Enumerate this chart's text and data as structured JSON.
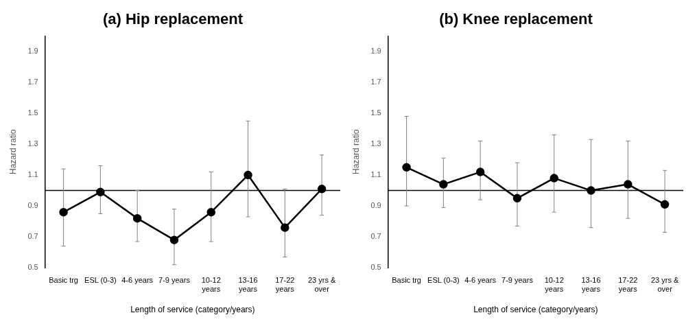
{
  "chart_data": [
    {
      "type": "line",
      "title": "(a) Hip replacement",
      "xlabel": "Length of service (category/years)",
      "ylabel": "Hazard ratio",
      "categories": [
        "Basic trg",
        "ESL (0-3)",
        "4-6 years",
        "7-9 years",
        "10-12 years",
        "13-16 years",
        "17-22 years",
        "23 yrs & over"
      ],
      "series": [
        {
          "color": "#000000",
          "values": [
            0.86,
            0.99,
            0.82,
            0.68,
            0.86,
            1.1,
            0.76,
            1.01
          ],
          "errors": [
            [
              0.64,
              1.14
            ],
            [
              0.85,
              1.16
            ],
            [
              0.67,
              1.0
            ],
            [
              0.52,
              0.88
            ],
            [
              0.67,
              1.12
            ],
            [
              0.83,
              1.45
            ],
            [
              0.57,
              1.01
            ],
            [
              0.84,
              1.23
            ]
          ]
        }
      ],
      "ylim": [
        0.5,
        2.0
      ],
      "yticks": [
        0.5,
        0.7,
        0.9,
        1.1,
        1.3,
        1.5,
        1.7,
        1.9
      ],
      "ref_lines": [
        {
          "axis": "y",
          "value": 1.0,
          "color": "#000000"
        }
      ],
      "grid": false,
      "legend": false,
      "marker": "circle",
      "line_style": "solid"
    },
    {
      "type": "line",
      "title": "(b) Knee replacement",
      "xlabel": "Length of service (category/years)",
      "ylabel": "Hazard ratio",
      "categories": [
        "Basic trg",
        "ESL (0-3)",
        "4-6 years",
        "7-9 years",
        "10-12 years",
        "13-16 years",
        "17-22 years",
        "23 yrs & over"
      ],
      "series": [
        {
          "color": "#000000",
          "values": [
            1.15,
            1.04,
            1.12,
            0.95,
            1.08,
            1.0,
            1.04,
            0.91
          ],
          "errors": [
            [
              0.9,
              1.48
            ],
            [
              0.89,
              1.21
            ],
            [
              0.94,
              1.32
            ],
            [
              0.77,
              1.18
            ],
            [
              0.86,
              1.36
            ],
            [
              0.76,
              1.33
            ],
            [
              0.82,
              1.32
            ],
            [
              0.73,
              1.13
            ]
          ]
        }
      ],
      "ylim": [
        0.5,
        2.0
      ],
      "yticks": [
        0.5,
        0.7,
        0.9,
        1.1,
        1.3,
        1.5,
        1.7,
        1.9
      ],
      "ref_lines": [
        {
          "axis": "y",
          "value": 1.0,
          "color": "#000000"
        }
      ],
      "grid": false,
      "legend": false,
      "marker": "circle",
      "line_style": "solid"
    }
  ]
}
